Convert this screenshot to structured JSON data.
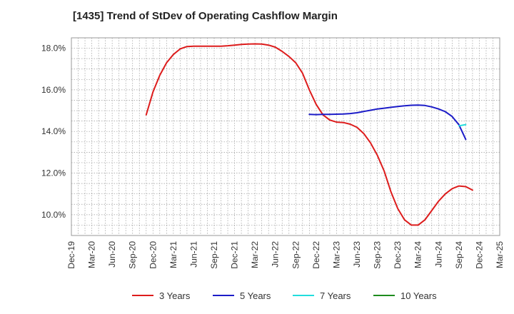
{
  "chart_data": {
    "type": "line",
    "title": "[1435]  Trend of StDev of Operating Cashflow Margin",
    "xlabel": "",
    "ylabel": "",
    "x_tick_labels": [
      "Dec-19",
      "Mar-20",
      "Jun-20",
      "Sep-20",
      "Dec-20",
      "Mar-21",
      "Jun-21",
      "Sep-21",
      "Dec-21",
      "Mar-22",
      "Jun-22",
      "Sep-22",
      "Dec-22",
      "Mar-23",
      "Jun-23",
      "Sep-23",
      "Dec-23",
      "Mar-24",
      "Jun-24",
      "Sep-24",
      "Dec-24",
      "Mar-25"
    ],
    "y_tick_labels": [
      "10.0%",
      "12.0%",
      "14.0%",
      "16.0%",
      "18.0%"
    ],
    "y_ticks": [
      10,
      12,
      14,
      16,
      18
    ],
    "xlim": [
      "2019-12",
      "2025-03"
    ],
    "ylim": [
      9.0,
      18.5
    ],
    "grid": true,
    "legend_position": "bottom",
    "series": [
      {
        "name": "3 Years",
        "color": "#dd1c1c",
        "points": [
          [
            "2020-11",
            14.8
          ],
          [
            "2020-12",
            15.9
          ],
          [
            "2021-01",
            16.7
          ],
          [
            "2021-02",
            17.3
          ],
          [
            "2021-03",
            17.7
          ],
          [
            "2021-04",
            17.97
          ],
          [
            "2021-05",
            18.08
          ],
          [
            "2021-06",
            18.1
          ],
          [
            "2021-07",
            18.1
          ],
          [
            "2021-08",
            18.1
          ],
          [
            "2021-09",
            18.1
          ],
          [
            "2021-10",
            18.1
          ],
          [
            "2021-11",
            18.12
          ],
          [
            "2021-12",
            18.15
          ],
          [
            "2022-01",
            18.18
          ],
          [
            "2022-02",
            18.2
          ],
          [
            "2022-03",
            18.21
          ],
          [
            "2022-04",
            18.2
          ],
          [
            "2022-05",
            18.15
          ],
          [
            "2022-06",
            18.05
          ],
          [
            "2022-07",
            17.85
          ],
          [
            "2022-08",
            17.6
          ],
          [
            "2022-09",
            17.3
          ],
          [
            "2022-10",
            16.8
          ],
          [
            "2022-11",
            16.0
          ],
          [
            "2022-12",
            15.3
          ],
          [
            "2023-01",
            14.8
          ],
          [
            "2023-02",
            14.55
          ],
          [
            "2023-03",
            14.45
          ],
          [
            "2023-04",
            14.43
          ],
          [
            "2023-05",
            14.35
          ],
          [
            "2023-06",
            14.2
          ],
          [
            "2023-07",
            13.9
          ],
          [
            "2023-08",
            13.45
          ],
          [
            "2023-09",
            12.85
          ],
          [
            "2023-10",
            12.1
          ],
          [
            "2023-11",
            11.1
          ],
          [
            "2023-12",
            10.3
          ],
          [
            "2024-01",
            9.75
          ],
          [
            "2024-02",
            9.5
          ],
          [
            "2024-03",
            9.5
          ],
          [
            "2024-04",
            9.75
          ],
          [
            "2024-05",
            10.2
          ],
          [
            "2024-06",
            10.65
          ],
          [
            "2024-07",
            11.0
          ],
          [
            "2024-08",
            11.25
          ],
          [
            "2024-09",
            11.38
          ],
          [
            "2024-10",
            11.35
          ],
          [
            "2024-11",
            11.18
          ]
        ]
      },
      {
        "name": "5 Years",
        "color": "#1c1cc8",
        "points": [
          [
            "2022-11",
            14.82
          ],
          [
            "2022-12",
            14.81
          ],
          [
            "2023-01",
            14.82
          ],
          [
            "2023-02",
            14.82
          ],
          [
            "2023-03",
            14.83
          ],
          [
            "2023-04",
            14.84
          ],
          [
            "2023-05",
            14.86
          ],
          [
            "2023-06",
            14.9
          ],
          [
            "2023-07",
            14.96
          ],
          [
            "2023-08",
            15.02
          ],
          [
            "2023-09",
            15.08
          ],
          [
            "2023-10",
            15.12
          ],
          [
            "2023-11",
            15.16
          ],
          [
            "2023-12",
            15.2
          ],
          [
            "2024-01",
            15.23
          ],
          [
            "2024-02",
            15.26
          ],
          [
            "2024-03",
            15.27
          ],
          [
            "2024-04",
            15.25
          ],
          [
            "2024-05",
            15.18
          ],
          [
            "2024-06",
            15.08
          ],
          [
            "2024-07",
            14.95
          ],
          [
            "2024-08",
            14.72
          ],
          [
            "2024-09",
            14.32
          ],
          [
            "2024-10",
            13.62
          ]
        ]
      },
      {
        "name": "7 Years",
        "color": "#22dddd",
        "points": [
          [
            "2024-09",
            14.27
          ],
          [
            "2024-10",
            14.33
          ]
        ]
      },
      {
        "name": "10 Years",
        "color": "#1e8c1e",
        "points": []
      }
    ]
  }
}
